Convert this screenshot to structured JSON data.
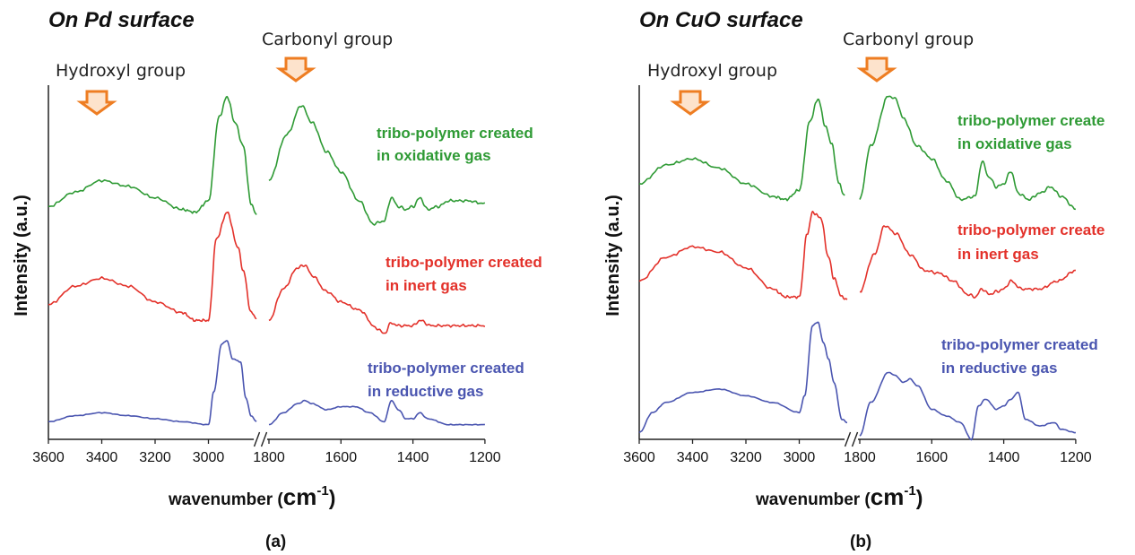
{
  "colors": {
    "oxidative": "#2e9a34",
    "inert": "#e3312a",
    "reductive": "#4a55b0",
    "arrow_stroke": "#ee7d22",
    "arrow_fill": "#fde3cc"
  },
  "panels": [
    {
      "title": "On Pd surface",
      "panel_label": "(a)",
      "hydroxyl_label": "Hydroxyl group",
      "carbonyl_label": "Carbonyl group",
      "ylabel": "Intensity (a.u.)",
      "xlabel_prefix": "wavenumber (",
      "xlabel_unit": "cm",
      "xlabel_exp": "-1",
      "xlabel_suffix": ")",
      "ticks": [
        "3600",
        "3400",
        "3200",
        "3000",
        "1800",
        "1600",
        "1400",
        "1200"
      ],
      "series_labels": [
        [
          "tribo-polymer created",
          "in oxidative gas"
        ],
        [
          "tribo-polymer created",
          "in inert gas"
        ],
        [
          "tribo-polymer created",
          "in reductive gas"
        ]
      ]
    },
    {
      "title": "On CuO surface",
      "panel_label": "(b)",
      "hydroxyl_label": "Hydroxyl group",
      "carbonyl_label": "Carbonyl group",
      "ylabel": "Intensity (a.u.)",
      "xlabel_prefix": "wavenumber (",
      "xlabel_unit": "cm",
      "xlabel_exp": "-1",
      "xlabel_suffix": ")",
      "ticks": [
        "3600",
        "3400",
        "3200",
        "3000",
        "1800",
        "1600",
        "1400",
        "1200"
      ],
      "series_labels": [
        [
          "tribo-polymer create",
          "in oxidative gas"
        ],
        [
          "tribo-polymer create",
          "in inert gas"
        ],
        [
          "tribo-polymer created",
          "in reductive gas"
        ]
      ]
    }
  ],
  "chart_data": [
    {
      "type": "line",
      "title": "On Pd surface",
      "xlabel": "wavenumber (cm-1)",
      "ylabel": "Intensity (a.u.)",
      "x_axis": {
        "segments": [
          [
            3600,
            2800
          ],
          [
            1800,
            1200
          ]
        ],
        "reversed": true,
        "axis_break": true
      },
      "grid": false,
      "annotations": [
        "Hydroxyl group",
        "Carbonyl group"
      ],
      "series": [
        {
          "name": "tribo-polymer created in oxidative gas",
          "points": [
            [
              3600,
              0.53
            ],
            [
              3500,
              0.58
            ],
            [
              3400,
              0.62
            ],
            [
              3300,
              0.6
            ],
            [
              3200,
              0.56
            ],
            [
              3100,
              0.52
            ],
            [
              3050,
              0.51
            ],
            [
              3000,
              0.55
            ],
            [
              2960,
              0.84
            ],
            [
              2930,
              0.91
            ],
            [
              2900,
              0.82
            ],
            [
              2870,
              0.74
            ],
            [
              2840,
              0.54
            ],
            [
              2820,
              0.5
            ],
            [
              1800,
              0.62
            ],
            [
              1750,
              0.78
            ],
            [
              1710,
              0.88
            ],
            [
              1680,
              0.82
            ],
            [
              1640,
              0.72
            ],
            [
              1600,
              0.65
            ],
            [
              1550,
              0.55
            ],
            [
              1510,
              0.47
            ],
            [
              1480,
              0.48
            ],
            [
              1460,
              0.56
            ],
            [
              1440,
              0.53
            ],
            [
              1420,
              0.52
            ],
            [
              1400,
              0.53
            ],
            [
              1380,
              0.56
            ],
            [
              1360,
              0.52
            ],
            [
              1330,
              0.53
            ],
            [
              1300,
              0.55
            ],
            [
              1250,
              0.55
            ],
            [
              1200,
              0.54
            ]
          ]
        },
        {
          "name": "tribo-polymer created in inert gas",
          "points": [
            [
              3600,
              0.32
            ],
            [
              3500,
              0.39
            ],
            [
              3400,
              0.42
            ],
            [
              3300,
              0.39
            ],
            [
              3200,
              0.33
            ],
            [
              3100,
              0.29
            ],
            [
              3050,
              0.26
            ],
            [
              3000,
              0.26
            ],
            [
              2970,
              0.57
            ],
            [
              2930,
              0.67
            ],
            [
              2890,
              0.54
            ],
            [
              2870,
              0.45
            ],
            [
              2840,
              0.29
            ],
            [
              2820,
              0.27
            ],
            [
              1800,
              0.26
            ],
            [
              1760,
              0.38
            ],
            [
              1720,
              0.46
            ],
            [
              1700,
              0.47
            ],
            [
              1680,
              0.43
            ],
            [
              1640,
              0.37
            ],
            [
              1600,
              0.33
            ],
            [
              1550,
              0.3
            ],
            [
              1500,
              0.23
            ],
            [
              1480,
              0.21
            ],
            [
              1460,
              0.25
            ],
            [
              1440,
              0.24
            ],
            [
              1400,
              0.24
            ],
            [
              1380,
              0.26
            ],
            [
              1350,
              0.24
            ],
            [
              1300,
              0.24
            ],
            [
              1250,
              0.24
            ],
            [
              1200,
              0.24
            ]
          ]
        },
        {
          "name": "tribo-polymer created in reductive gas",
          "points": [
            [
              3600,
              0.02
            ],
            [
              3500,
              0.04
            ],
            [
              3400,
              0.05
            ],
            [
              3300,
              0.04
            ],
            [
              3200,
              0.03
            ],
            [
              3100,
              0.02
            ],
            [
              3000,
              0.01
            ],
            [
              2980,
              0.12
            ],
            [
              2950,
              0.28
            ],
            [
              2930,
              0.29
            ],
            [
              2910,
              0.23
            ],
            [
              2880,
              0.22
            ],
            [
              2860,
              0.1
            ],
            [
              2840,
              0.04
            ],
            [
              2820,
              0.02
            ],
            [
              1800,
              0.01
            ],
            [
              1760,
              0.05
            ],
            [
              1720,
              0.08
            ],
            [
              1700,
              0.09
            ],
            [
              1680,
              0.08
            ],
            [
              1640,
              0.06
            ],
            [
              1600,
              0.07
            ],
            [
              1560,
              0.07
            ],
            [
              1520,
              0.05
            ],
            [
              1480,
              0.02
            ],
            [
              1460,
              0.09
            ],
            [
              1440,
              0.06
            ],
            [
              1420,
              0.03
            ],
            [
              1400,
              0.03
            ],
            [
              1380,
              0.05
            ],
            [
              1360,
              0.03
            ],
            [
              1300,
              0.01
            ],
            [
              1250,
              0.01
            ],
            [
              1200,
              0.01
            ]
          ]
        }
      ]
    },
    {
      "type": "line",
      "title": "On CuO surface",
      "xlabel": "wavenumber (cm-1)",
      "ylabel": "Intensity (a.u.)",
      "x_axis": {
        "segments": [
          [
            3600,
            2800
          ],
          [
            1800,
            1200
          ]
        ],
        "reversed": true,
        "axis_break": true
      },
      "grid": false,
      "annotations": [
        "Hydroxyl group",
        "Carbonyl group"
      ],
      "series": [
        {
          "name": "tribo-polymer create in oxidative gas",
          "points": [
            [
              3600,
              0.7
            ],
            [
              3500,
              0.76
            ],
            [
              3400,
              0.78
            ],
            [
              3300,
              0.75
            ],
            [
              3200,
              0.7
            ],
            [
              3100,
              0.66
            ],
            [
              3050,
              0.65
            ],
            [
              3000,
              0.68
            ],
            [
              2960,
              0.9
            ],
            [
              2930,
              0.97
            ],
            [
              2900,
              0.88
            ],
            [
              2880,
              0.83
            ],
            [
              2850,
              0.7
            ],
            [
              2830,
              0.66
            ],
            [
              1800,
              0.65
            ],
            [
              1770,
              0.82
            ],
            [
              1720,
              0.98
            ],
            [
              1700,
              0.97
            ],
            [
              1680,
              0.91
            ],
            [
              1640,
              0.82
            ],
            [
              1600,
              0.78
            ],
            [
              1560,
              0.71
            ],
            [
              1520,
              0.65
            ],
            [
              1480,
              0.66
            ],
            [
              1460,
              0.77
            ],
            [
              1440,
              0.72
            ],
            [
              1420,
              0.69
            ],
            [
              1400,
              0.7
            ],
            [
              1380,
              0.74
            ],
            [
              1360,
              0.67
            ],
            [
              1330,
              0.65
            ],
            [
              1300,
              0.67
            ],
            [
              1270,
              0.69
            ],
            [
              1240,
              0.66
            ],
            [
              1200,
              0.62
            ]
          ]
        },
        {
          "name": "tribo-polymer create in inert gas",
          "points": [
            [
              3600,
              0.4
            ],
            [
              3500,
              0.49
            ],
            [
              3400,
              0.53
            ],
            [
              3300,
              0.51
            ],
            [
              3200,
              0.45
            ],
            [
              3100,
              0.37
            ],
            [
              3050,
              0.34
            ],
            [
              3000,
              0.34
            ],
            [
              2970,
              0.58
            ],
            [
              2950,
              0.66
            ],
            [
              2920,
              0.64
            ],
            [
              2890,
              0.49
            ],
            [
              2870,
              0.41
            ],
            [
              2840,
              0.34
            ],
            [
              2820,
              0.33
            ],
            [
              1800,
              0.36
            ],
            [
              1760,
              0.5
            ],
            [
              1730,
              0.61
            ],
            [
              1700,
              0.58
            ],
            [
              1660,
              0.5
            ],
            [
              1620,
              0.44
            ],
            [
              1580,
              0.43
            ],
            [
              1540,
              0.4
            ],
            [
              1500,
              0.35
            ],
            [
              1480,
              0.34
            ],
            [
              1460,
              0.37
            ],
            [
              1440,
              0.35
            ],
            [
              1420,
              0.36
            ],
            [
              1400,
              0.37
            ],
            [
              1380,
              0.4
            ],
            [
              1350,
              0.37
            ],
            [
              1300,
              0.37
            ],
            [
              1250,
              0.4
            ],
            [
              1200,
              0.44
            ]
          ]
        },
        {
          "name": "tribo-polymer created in reductive gas",
          "points": [
            [
              3600,
              0.02
            ],
            [
              3550,
              0.08
            ],
            [
              3500,
              0.11
            ],
            [
              3400,
              0.14
            ],
            [
              3300,
              0.15
            ],
            [
              3200,
              0.13
            ],
            [
              3100,
              0.11
            ],
            [
              3000,
              0.08
            ],
            [
              2980,
              0.13
            ],
            [
              2950,
              0.34
            ],
            [
              2930,
              0.35
            ],
            [
              2910,
              0.29
            ],
            [
              2890,
              0.24
            ],
            [
              2870,
              0.17
            ],
            [
              2840,
              0.06
            ],
            [
              2820,
              0.05
            ],
            [
              1800,
              0.01
            ],
            [
              1770,
              0.11
            ],
            [
              1720,
              0.2
            ],
            [
              1700,
              0.19
            ],
            [
              1680,
              0.17
            ],
            [
              1660,
              0.18
            ],
            [
              1640,
              0.16
            ],
            [
              1600,
              0.09
            ],
            [
              1560,
              0.07
            ],
            [
              1520,
              0.05
            ],
            [
              1490,
              0.0
            ],
            [
              1470,
              0.1
            ],
            [
              1450,
              0.12
            ],
            [
              1420,
              0.09
            ],
            [
              1400,
              0.1
            ],
            [
              1380,
              0.12
            ],
            [
              1360,
              0.14
            ],
            [
              1340,
              0.06
            ],
            [
              1300,
              0.04
            ],
            [
              1260,
              0.05
            ],
            [
              1240,
              0.03
            ],
            [
              1200,
              0.02
            ]
          ]
        }
      ]
    }
  ]
}
